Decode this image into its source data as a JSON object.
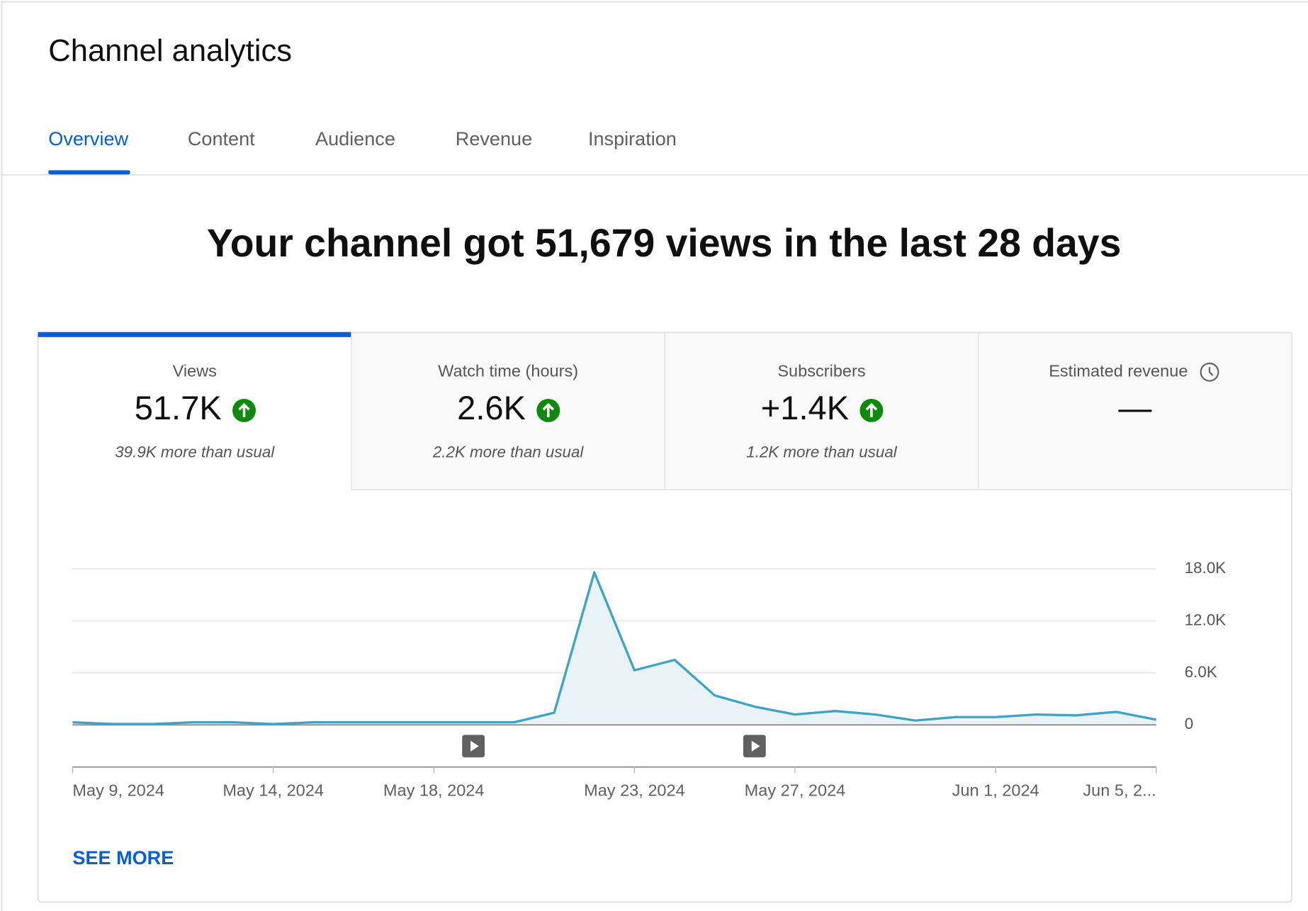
{
  "header": {
    "title": "Channel analytics"
  },
  "tabs": [
    "Overview",
    "Content",
    "Audience",
    "Revenue",
    "Inspiration"
  ],
  "headline": "Your channel got 51,679 views in the last 28 days",
  "metrics": [
    {
      "label": "Views",
      "value": "51.7K",
      "note": "39.9K more than usual"
    },
    {
      "label": "Watch time (hours)",
      "value": "2.6K",
      "note": "2.2K more than usual"
    },
    {
      "label": "Subscribers",
      "value": "+1.4K",
      "note": "1.2K more than usual"
    },
    {
      "label": "Estimated revenue",
      "value": "—"
    }
  ],
  "chart_data": {
    "type": "line",
    "categories": [
      "May 9, 2024",
      null,
      null,
      null,
      null,
      "May 14, 2024",
      null,
      null,
      null,
      "May 18, 2024",
      null,
      null,
      null,
      null,
      "May 23, 2024",
      null,
      null,
      null,
      "May 27, 2024",
      null,
      null,
      null,
      null,
      "Jun 1, 2024",
      null,
      null,
      null,
      "Jun 5, 2..."
    ],
    "values": [
      300,
      100,
      100,
      300,
      300,
      100,
      300,
      300,
      300,
      300,
      300,
      300,
      1400,
      17600,
      6300,
      7500,
      3400,
      2100,
      1200,
      1600,
      1200,
      500,
      900,
      900,
      1200,
      1100,
      1500,
      600
    ],
    "color": "#3fa3c7",
    "ylim": [
      0,
      18000
    ],
    "yticks": [
      0,
      {
        "value": 6000,
        "label": "6.0K"
      },
      {
        "value": 12000,
        "label": "12.0K"
      },
      {
        "value": 18000,
        "label": "18.0K"
      }
    ],
    "grid": true
  },
  "see_more": "SEE MORE"
}
